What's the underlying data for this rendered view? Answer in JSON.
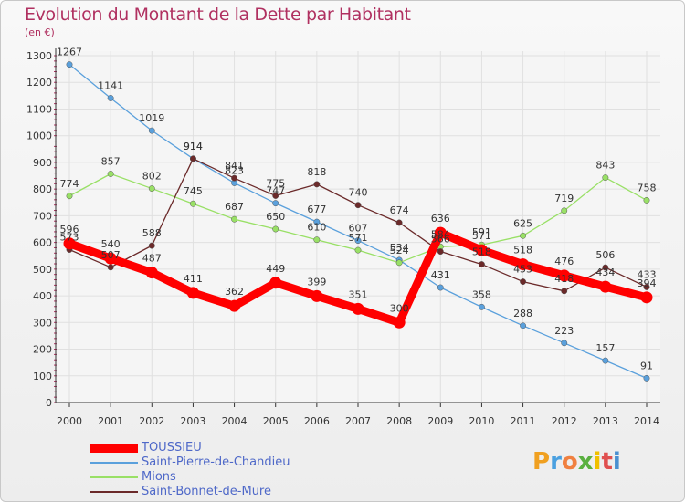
{
  "header": {
    "title": "Evolution du Montant de la Dette par Habitant",
    "unit": "(en €)"
  },
  "legend": [
    {
      "label": "TOUSSIEU",
      "color": "#ff0000"
    },
    {
      "label": "Saint-Pierre-de-Chandieu",
      "color": "#5aa0dc"
    },
    {
      "label": "Mions",
      "color": "#99e066"
    },
    {
      "label": "Saint-Bonnet-de-Mure",
      "color": "#6b2a2a"
    }
  ],
  "logo": {
    "letters": [
      "P",
      "r",
      "o",
      "x",
      "i",
      "t",
      "i"
    ],
    "colors": [
      "#f0a020",
      "#4aa0e0",
      "#f08040",
      "#5ab040",
      "#f0c000",
      "#e05050",
      "#4a90d0"
    ]
  },
  "chart_data": {
    "type": "line",
    "title": "Evolution du Montant de la Dette par Habitant",
    "xlabel": "",
    "ylabel": "(en €)",
    "ylim": [
      0,
      1300
    ],
    "yticks": [
      0,
      100,
      200,
      300,
      400,
      500,
      600,
      700,
      800,
      900,
      1000,
      1100,
      1200,
      1300
    ],
    "grid": true,
    "legend_position": "bottom-left",
    "x": [
      "2000",
      "2001",
      "2002",
      "2003",
      "2004",
      "2005",
      "2006",
      "2007",
      "2008",
      "2009",
      "2010",
      "2011",
      "2012",
      "2013",
      "2014"
    ],
    "series": [
      {
        "name": "Saint-Pierre-de-Chandieu",
        "color": "#5aa0dc",
        "values": [
          1267,
          1141,
          1019,
          914,
          823,
          747,
          677,
          607,
          534,
          431,
          358,
          288,
          223,
          157,
          91
        ]
      },
      {
        "name": "Mions",
        "color": "#99e066",
        "values": [
          774,
          857,
          802,
          745,
          687,
          650,
          610,
          571,
          524,
          584,
          591,
          625,
          719,
          843,
          758
        ]
      },
      {
        "name": "Saint-Bonnet-de-Mure",
        "color": "#6b2a2a",
        "values": [
          573,
          507,
          588,
          914,
          841,
          775,
          818,
          740,
          674,
          566,
          518,
          453,
          418,
          506,
          433
        ]
      },
      {
        "name": "TOUSSIEU",
        "color": "#ff0000",
        "values": [
          596,
          540,
          487,
          411,
          362,
          449,
          399,
          351,
          300,
          636,
          571,
          518,
          476,
          434,
          394
        ]
      }
    ]
  }
}
